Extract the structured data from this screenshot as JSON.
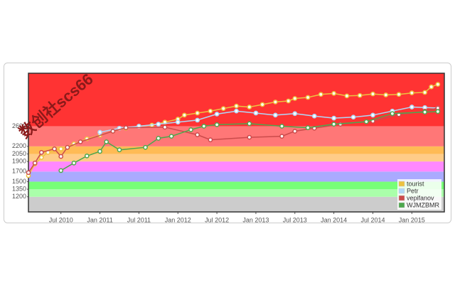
{
  "chart_data": {
    "type": "line",
    "watermark": "数创社scs66",
    "xlim": [
      "2010-02",
      "2015-06"
    ],
    "xticks": [
      {
        "value": "2010-07",
        "label": "Jul 2010"
      },
      {
        "value": "2011-01",
        "label": "Jan 2011"
      },
      {
        "value": "2011-07",
        "label": "Jul 2011"
      },
      {
        "value": "2012-01",
        "label": "Jan 2012"
      },
      {
        "value": "2012-07",
        "label": "Jul 2012"
      },
      {
        "value": "2013-01",
        "label": "Jan 2013"
      },
      {
        "value": "2013-07",
        "label": "Jul 2013"
      },
      {
        "value": "2014-01",
        "label": "Jan 2014"
      },
      {
        "value": "2014-07",
        "label": "Jul 2014"
      },
      {
        "value": "2015-01",
        "label": "Jan 2015"
      }
    ],
    "ylim": [
      900,
      3650
    ],
    "yticks": [
      1200,
      1350,
      1500,
      1700,
      1900,
      2050,
      2200,
      2600
    ],
    "band_colors": [
      "#aaffaa",
      "#77ff77",
      "#aaaaff",
      "#ff88ff",
      "#ffcc88",
      "#ffbb55",
      "#ff7777",
      "#ff3333"
    ],
    "base_color": "#cccccc",
    "legend": "se",
    "series": [
      {
        "name": "tourist",
        "color": "#edc240",
        "x": [
          "2010-02",
          "2010-03",
          "2010-04",
          "2010-05",
          "2010-07",
          "2010-09",
          "2010-11",
          "2011-01",
          "2011-03",
          "2011-05",
          "2011-07",
          "2011-09",
          "2011-11",
          "2012-01",
          "2012-02",
          "2012-04",
          "2012-06",
          "2012-08",
          "2012-10",
          "2012-12",
          "2013-02",
          "2013-04",
          "2013-06",
          "2013-07",
          "2013-09",
          "2013-11",
          "2014-01",
          "2014-03",
          "2014-05",
          "2014-07",
          "2014-09",
          "2014-11",
          "2015-01",
          "2015-03",
          "2015-04",
          "2015-05"
        ],
        "values": [
          1620,
          1850,
          1980,
          2080,
          2150,
          2250,
          2350,
          2420,
          2500,
          2560,
          2600,
          2620,
          2680,
          2740,
          2820,
          2860,
          2900,
          2950,
          3000,
          2980,
          3030,
          3080,
          3100,
          3150,
          3170,
          3230,
          3250,
          3200,
          3210,
          3240,
          3220,
          3230,
          3260,
          3270,
          3380,
          3430
        ]
      },
      {
        "name": "Petr",
        "color": "#afd8f8",
        "x": [
          "2011-01",
          "2011-04",
          "2011-07",
          "2011-10",
          "2012-01",
          "2012-04",
          "2012-07",
          "2012-10",
          "2013-01",
          "2013-04",
          "2013-07",
          "2013-10",
          "2014-01",
          "2014-04",
          "2014-07",
          "2014-10",
          "2015-01",
          "2015-03",
          "2015-05"
        ],
        "values": [
          2480,
          2560,
          2600,
          2640,
          2680,
          2720,
          2840,
          2900,
          2860,
          2820,
          2850,
          2800,
          2760,
          2780,
          2820,
          2900,
          2980,
          2970,
          2960
        ]
      },
      {
        "name": "vepifanov",
        "color": "#cb4b4b",
        "x": [
          "2010-02",
          "2010-03",
          "2010-04",
          "2010-06",
          "2010-07",
          "2010-08",
          "2010-10",
          "2011-03",
          "2011-05",
          "2011-11",
          "2012-04",
          "2012-06",
          "2012-12",
          "2013-05",
          "2013-07",
          "2013-10",
          "2014-02",
          "2014-07",
          "2014-11",
          "2015-03",
          "2015-05"
        ],
        "values": [
          1680,
          1870,
          2080,
          2150,
          2000,
          2180,
          2290,
          2500,
          2570,
          2580,
          2430,
          2330,
          2380,
          2400,
          2500,
          2560,
          2640,
          2700,
          2830,
          2900,
          2960
        ]
      },
      {
        "name": "WJMZBMR",
        "color": "#4da74d",
        "x": [
          "2010-07",
          "2010-09",
          "2010-11",
          "2011-01",
          "2011-02",
          "2011-04",
          "2011-08",
          "2011-10",
          "2011-12",
          "2012-03",
          "2012-05",
          "2012-07",
          "2012-12",
          "2013-05",
          "2013-09",
          "2014-01",
          "2014-06",
          "2014-10",
          "2015-03",
          "2015-05"
        ],
        "values": [
          1720,
          1870,
          2010,
          2100,
          2290,
          2130,
          2180,
          2360,
          2400,
          2530,
          2600,
          2630,
          2650,
          2600,
          2570,
          2640,
          2690,
          2850,
          2880,
          2890
        ]
      }
    ]
  }
}
